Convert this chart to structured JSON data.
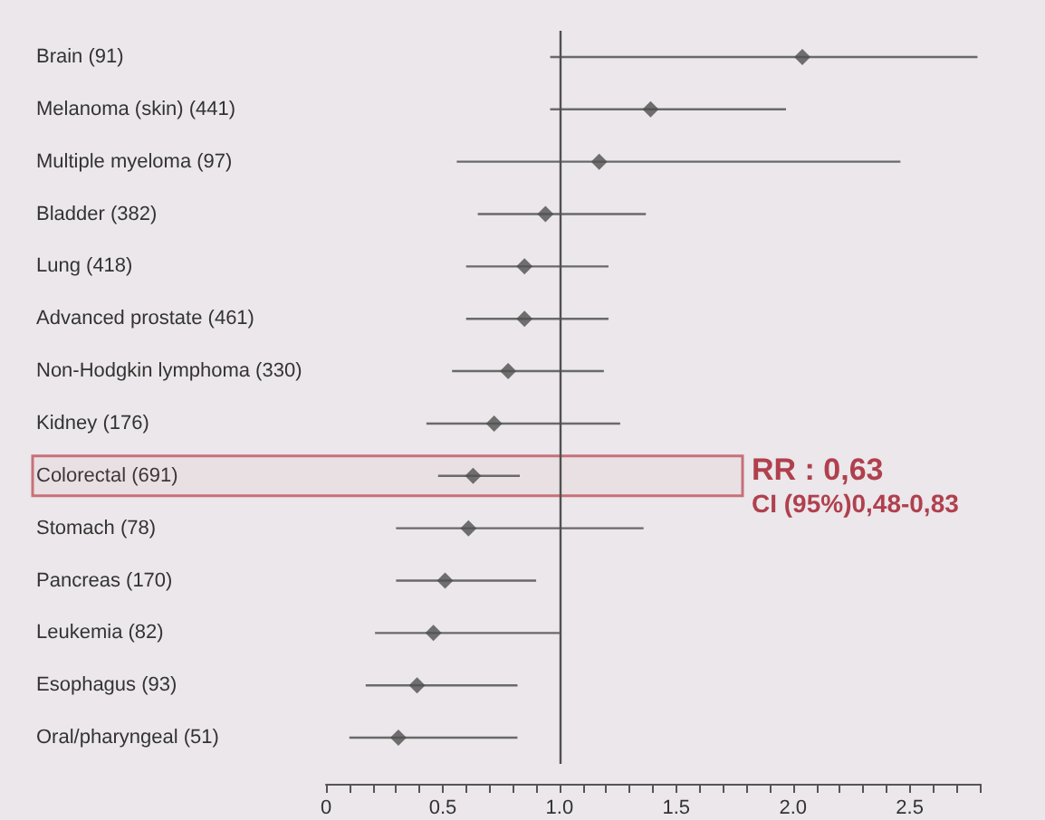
{
  "chart_data": {
    "type": "scatter",
    "orientation": "horizontal",
    "marker": "diamond",
    "color": "#505050",
    "categories": [
      "Brain (91)",
      "Melanoma (skin) (441)",
      "Multiple myeloma (97)",
      "Bladder (382)",
      "Lung (418)",
      "Advanced prostate (461)",
      "Non-Hodgkin lymphoma (330)",
      "Kidney (176)",
      "Colorectal (691)",
      "Stomach (78)",
      "Pancreas (170)",
      "Leukemia (82)",
      "Esophagus (93)",
      "Oral/pharyngeal (51)"
    ],
    "values": [
      2.04,
      1.39,
      1.17,
      0.94,
      0.85,
      0.85,
      0.78,
      0.72,
      0.63,
      0.61,
      0.51,
      0.46,
      0.39,
      0.31
    ],
    "errors": [
      [
        0.96,
        2.79
      ],
      [
        0.96,
        1.97
      ],
      [
        0.56,
        2.46
      ],
      [
        0.65,
        1.37
      ],
      [
        0.6,
        1.21
      ],
      [
        0.6,
        1.21
      ],
      [
        0.54,
        1.19
      ],
      [
        0.43,
        1.26
      ],
      [
        0.48,
        0.83
      ],
      [
        0.3,
        1.36
      ],
      [
        0.3,
        0.9
      ],
      [
        0.21,
        1.0
      ],
      [
        0.17,
        0.82
      ],
      [
        0.1,
        0.82
      ]
    ],
    "xlim": [
      0,
      2.8
    ],
    "xticks": [
      0,
      {
        "value": 0.1,
        "label": null
      },
      {
        "value": 0.2,
        "label": null
      },
      {
        "value": 0.3,
        "label": null
      },
      {
        "value": 0.4,
        "label": null
      },
      0.5,
      {
        "value": 0.6,
        "label": null
      },
      {
        "value": 0.7,
        "label": null
      },
      {
        "value": 0.8,
        "label": null
      },
      {
        "value": 0.9,
        "label": null
      },
      {
        "value": 1,
        "label": "1.0"
      },
      {
        "value": 1.1,
        "label": null
      },
      {
        "value": 1.2,
        "label": null
      },
      {
        "value": 1.3,
        "label": null
      },
      {
        "value": 1.4,
        "label": null
      },
      1.5,
      {
        "value": 1.6,
        "label": null
      },
      {
        "value": 1.7,
        "label": null
      },
      {
        "value": 1.8,
        "label": null
      },
      {
        "value": 1.9,
        "label": null
      },
      {
        "value": 2,
        "label": "2.0"
      },
      {
        "value": 2.1,
        "label": null
      },
      {
        "value": 2.2,
        "label": null
      },
      {
        "value": 2.3,
        "label": null
      },
      {
        "value": 2.4,
        "label": null
      },
      2.5,
      {
        "value": 2.6,
        "label": null
      },
      {
        "value": 2.7,
        "label": null
      },
      {
        "value": 2.8,
        "label": null
      }
    ],
    "ref_lines": [
      {
        "axis": "x",
        "value": 1,
        "color": "#505050"
      }
    ],
    "bands": [
      {
        "axis": "y",
        "from": "Colorectal (691)",
        "to": "Colorectal (691)",
        "color": "#c8707a"
      }
    ],
    "annotations": [
      "RR : 0,63",
      "CI (95%)0,48-0,83"
    ],
    "grid": false
  }
}
